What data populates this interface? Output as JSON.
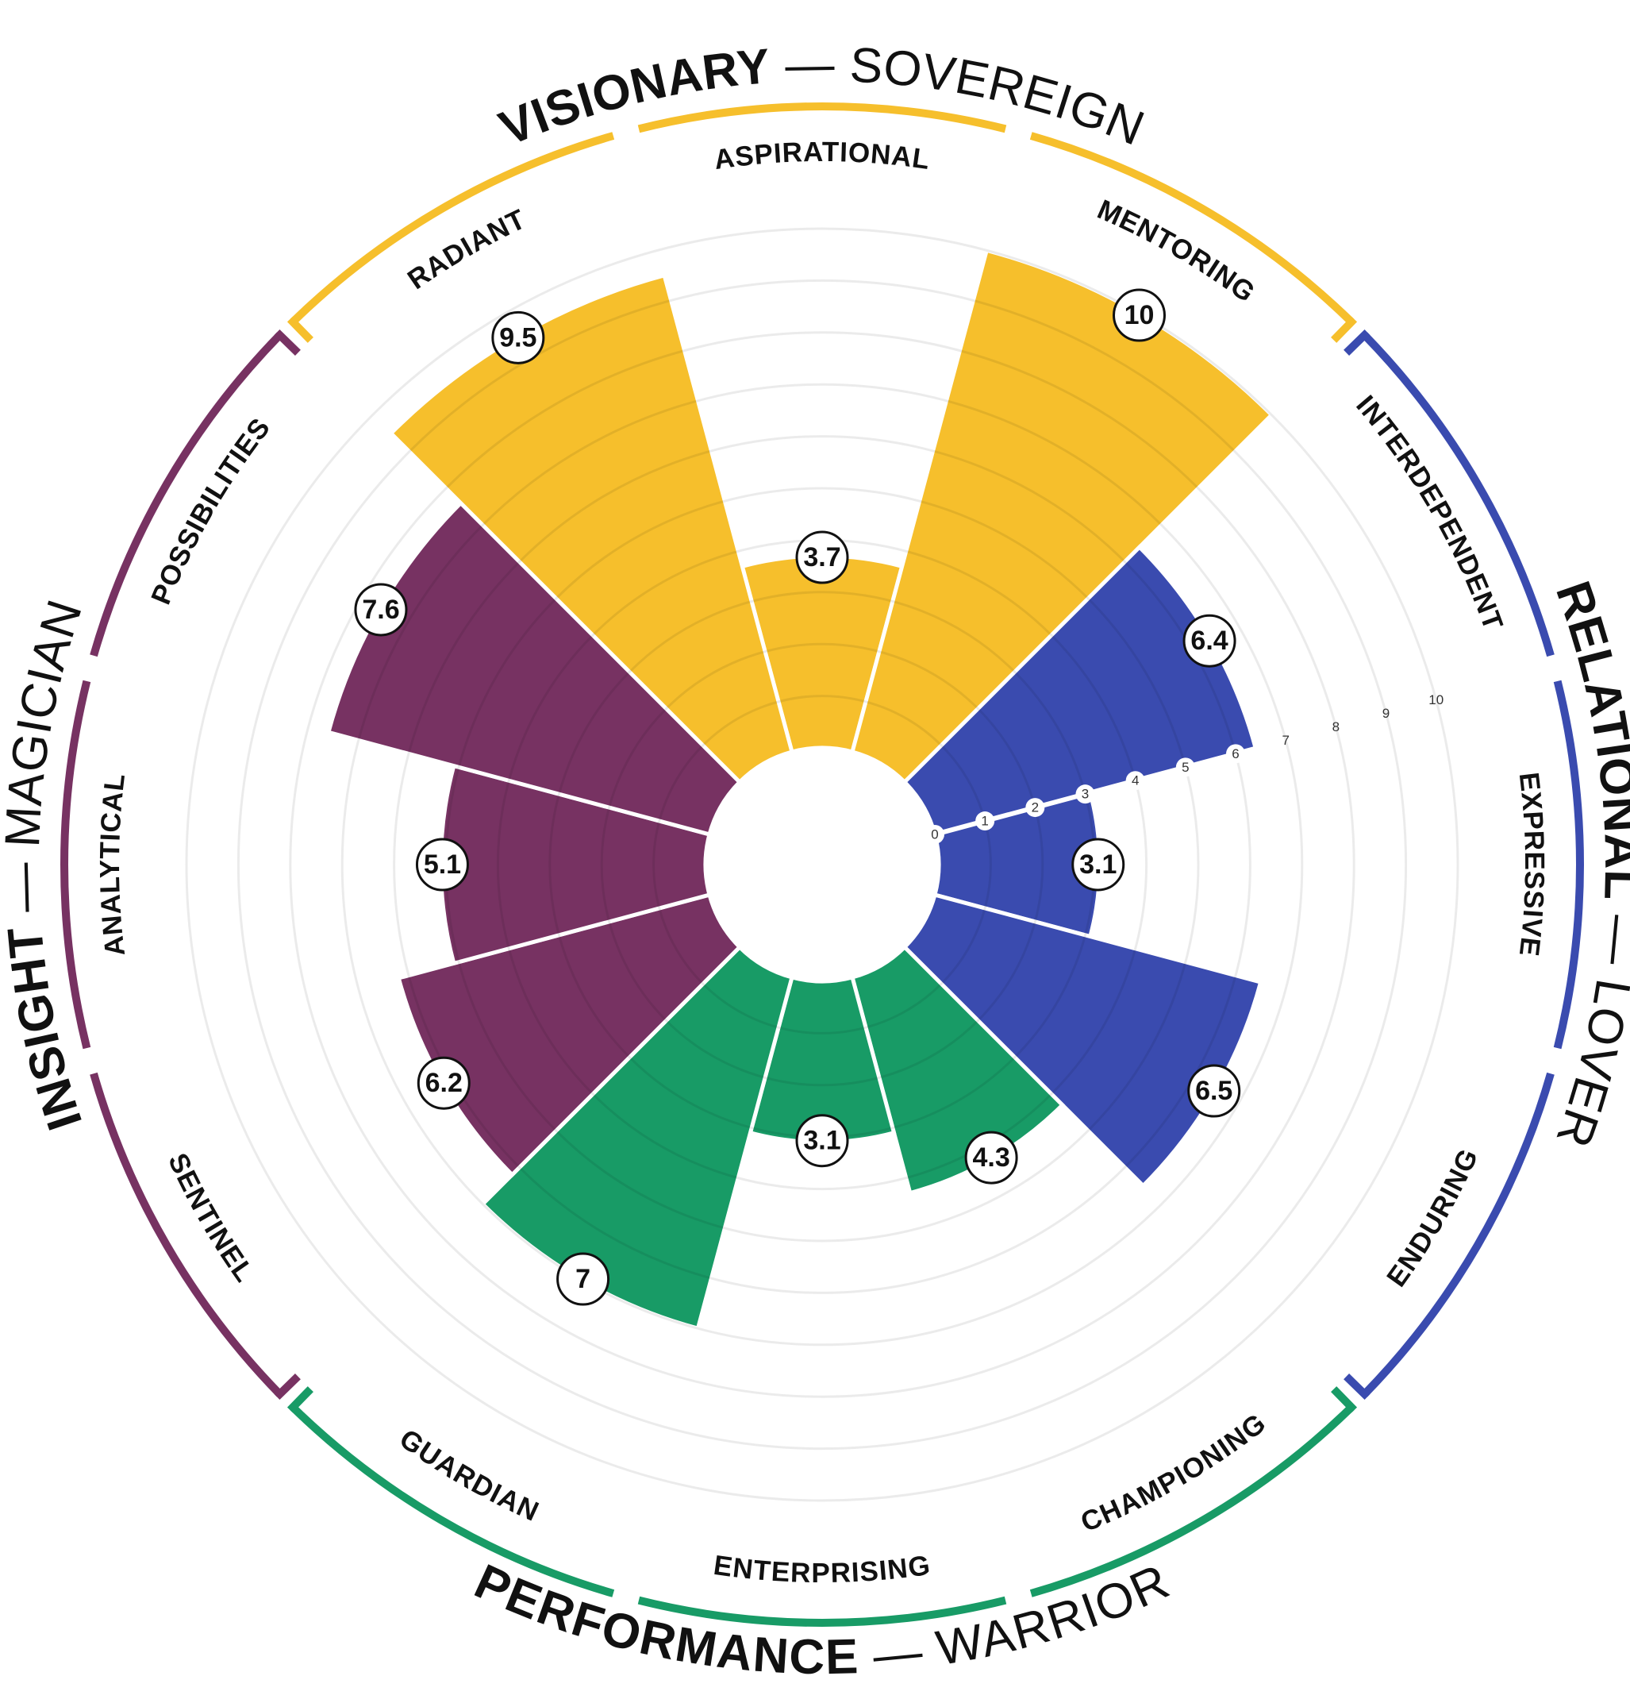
{
  "chart_data": {
    "type": "polar-area",
    "rlim": [
      0,
      10
    ],
    "ticks": [
      0,
      1,
      2,
      3,
      4,
      5,
      6,
      7,
      8,
      9,
      10
    ],
    "grid": true,
    "categories": [
      "ASPIRATIONAL",
      "MENTORING",
      "INTERDEPENDENT",
      "EXPRESSIVE",
      "ENDURING",
      "CHAMPIONING",
      "ENTERPRISING",
      "GUARDIAN",
      "SENTINEL",
      "ANALYTICAL",
      "POSSIBILITIES",
      "RADIANT"
    ],
    "values": [
      3.7,
      10,
      6.4,
      3.1,
      6.5,
      4.3,
      3.1,
      7,
      6.2,
      5.1,
      7.6,
      9.5
    ],
    "value_labels": [
      "3.7",
      "10",
      "6.4",
      "3.1",
      "6.5",
      "4.3",
      "3.1",
      "7",
      "6.2",
      "5.1",
      "7.6",
      "9.5"
    ],
    "groups": [
      {
        "bold": "VISIONARY",
        "light": "— SOVEREIGN",
        "color": "#F6BF2C",
        "categories": [
          "RADIANT",
          "ASPIRATIONAL",
          "MENTORING"
        ]
      },
      {
        "bold": "RELATIONAL",
        "light": "— LOVER",
        "color": "#3A4BAF",
        "categories": [
          "INTERDEPENDENT",
          "EXPRESSIVE",
          "ENDURING"
        ]
      },
      {
        "bold": "PERFORMANCE",
        "light": "— WARRIOR",
        "color": "#189B66",
        "categories": [
          "CHAMPIONING",
          "ENTERPRISING",
          "GUARDIAN"
        ]
      },
      {
        "bold": "INSIGHT",
        "light": "— MAGICIAN",
        "color": "#773262",
        "categories": [
          "SENTINEL",
          "ANALYTICAL",
          "POSSIBILITIES"
        ]
      }
    ],
    "category_colors": [
      "#F6BF2C",
      "#F6BF2C",
      "#3A4BAF",
      "#3A4BAF",
      "#3A4BAF",
      "#189B66",
      "#189B66",
      "#189B66",
      "#773262",
      "#773262",
      "#773262",
      "#F6BF2C"
    ]
  }
}
